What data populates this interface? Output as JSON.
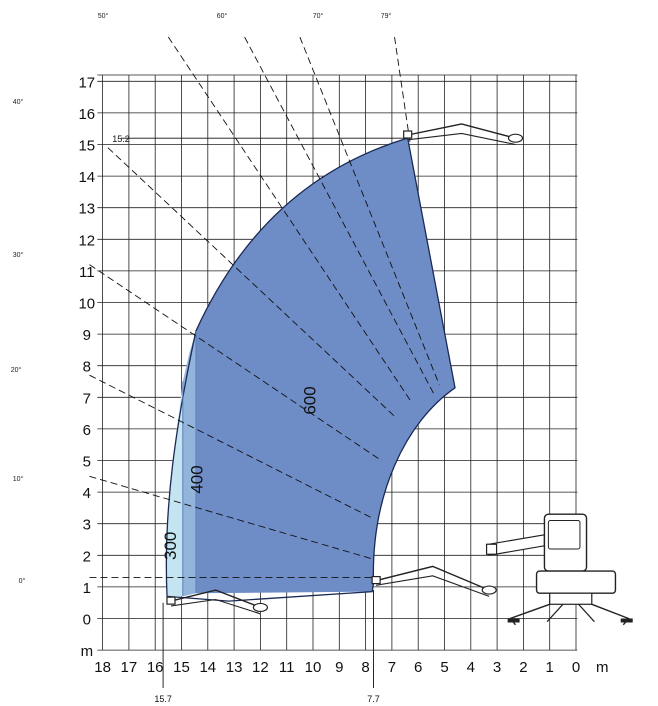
{
  "chart_data": {
    "type": "load-chart",
    "x_ticks": [
      "18",
      "17",
      "16",
      "15",
      "14",
      "13",
      "12",
      "11",
      "10",
      "9",
      "8",
      "7",
      "6",
      "5",
      "4",
      "3",
      "2",
      "1",
      "0"
    ],
    "y_ticks": [
      "0",
      "1",
      "2",
      "3",
      "4",
      "5",
      "6",
      "7",
      "8",
      "9",
      "10",
      "11",
      "12",
      "13",
      "14",
      "15",
      "16",
      "17"
    ],
    "x_unit": "m",
    "y_unit": "m",
    "xlim": [
      18,
      0
    ],
    "ylim": [
      0,
      17
    ],
    "max_height_label": "15.2",
    "max_height": 15.2,
    "max_reach_label": "15.7",
    "max_reach": 15.7,
    "min_reach_label": "7.7",
    "min_reach": 7.7,
    "boom_angles": [
      {
        "label": "0°",
        "deg": 0
      },
      {
        "label": "10°",
        "deg": 10
      },
      {
        "label": "20°",
        "deg": 20
      },
      {
        "label": "30°",
        "deg": 30
      },
      {
        "label": "40°",
        "deg": 40
      },
      {
        "label": "50°",
        "deg": 50
      },
      {
        "label": "60°",
        "deg": 60
      },
      {
        "label": "70°",
        "deg": 70
      },
      {
        "label": "79°",
        "deg": 79
      }
    ],
    "load_zones": [
      {
        "label": "300",
        "color": "#c4e4f2"
      },
      {
        "label": "400",
        "color": "#93b5dc"
      },
      {
        "label": "600",
        "color": "#6e8cc6"
      }
    ]
  }
}
